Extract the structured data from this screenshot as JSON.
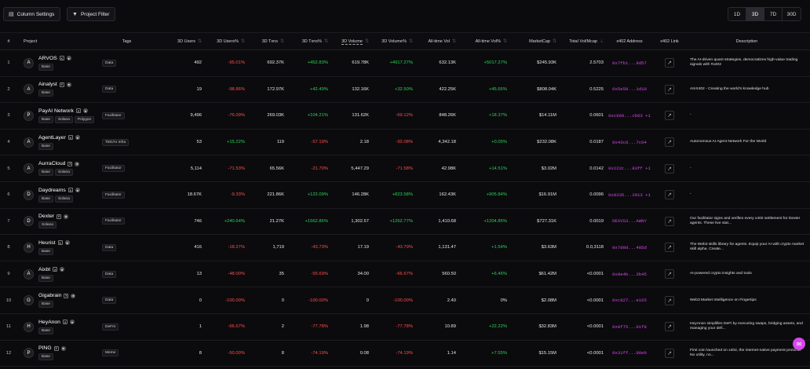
{
  "toolbar": {
    "column_settings_label": "Column Settings",
    "project_filter_label": "Project Filter",
    "timeframes": [
      "1D",
      "3D",
      "7D",
      "30D"
    ],
    "active_timeframe": "3D"
  },
  "table": {
    "headers": {
      "index": "#",
      "project": "Project",
      "tags": "Tags",
      "users": "3D Users",
      "users_pct": "3D Users%",
      "txns": "3D Txns",
      "txns_pct": "3D Txns%",
      "volume": "3D Volume",
      "volume_pct": "3D Volume%",
      "alltime_vol": "All-time Vol",
      "alltime_vol_pct": "All-time Vol%",
      "marketcap": "MarketCap",
      "vol_mcap": "Total Vol/Mcap",
      "x402_address": "x402 Address",
      "x402_link": "x402 Link",
      "description": "Description"
    },
    "rows": [
      {
        "index": "1",
        "name": "ARVOS",
        "logo": "A",
        "chips": [
          "Base"
        ],
        "tag": "Data",
        "users": "492",
        "users_pct": "-95.01%",
        "txns": "692.37K",
        "txns_pct": "+452.83%",
        "volume": "619.78K",
        "volume_pct": "+4917.27%",
        "alltime": "632.13K",
        "alltime_pct": "+5017.27%",
        "mcap": "$245.93K",
        "vmcap": "2.5703",
        "address": "0x7fb1...9d57",
        "desc": "The AI-driven quant strategies, democratizes high-value trading signals with #x402"
      },
      {
        "index": "2",
        "name": "Ainalyst",
        "logo": "A",
        "chips": [
          "Base"
        ],
        "tag": "Data",
        "users": "19",
        "users_pct": "-98.86%",
        "txns": "172.97K",
        "txns_pct": "+42.49%",
        "volume": "132.16K",
        "volume_pct": "+32.50%",
        "alltime": "422.25K",
        "alltime_pct": "+45.66%",
        "mcap": "$808.04K",
        "vmcap": "0.5225",
        "address": "0x5e50...1d10",
        "desc": "AInX402 - Creating the world's knowledge hub"
      },
      {
        "index": "3",
        "name": "PayAI Network",
        "logo": "P",
        "chips": [
          "Base",
          "Solana",
          "Polygon"
        ],
        "tag": "Facilitator",
        "users": "9,496",
        "users_pct": "-76.09%",
        "txns": "269.03K",
        "txns_pct": "+104.21%",
        "volume": "131.62K",
        "volume_pct": "-69.12%",
        "alltime": "848.26K",
        "alltime_pct": "+18.37%",
        "mcap": "$14.11M",
        "vmcap": "0.0601",
        "address": "0xc669...cb63 +1",
        "desc": "-"
      },
      {
        "index": "4",
        "name": "AgentLayer",
        "logo": "A",
        "chips": [
          "Base"
        ],
        "tag": "TEE/AI Infra",
        "users": "53",
        "users_pct": "+15.22%",
        "txns": "119",
        "txns_pct": "-57.19%",
        "volume": "2.18",
        "volume_pct": "-92.08%",
        "alltime": "4,342.18",
        "alltime_pct": "+0.05%",
        "mcap": "$232.08K",
        "vmcap": "0.0187",
        "address": "0x43c8...7c04",
        "desc": "Autonomous AI Agent Network For the World"
      },
      {
        "index": "5",
        "name": "AurraCloud",
        "logo": "A",
        "chips": [
          "Base",
          "Solana"
        ],
        "tag": "Facilitator",
        "users": "5,114",
        "users_pct": "-71.53%",
        "txns": "65.56K",
        "txns_pct": "-21.70%",
        "volume": "5,447.29",
        "volume_pct": "-71.58%",
        "alltime": "42.98K",
        "alltime_pct": "+14.51%",
        "mcap": "$3.02M",
        "vmcap": "0.0142",
        "address": "0x222c...83ff +1",
        "desc": "-"
      },
      {
        "index": "6",
        "name": "Daydreams",
        "logo": "D",
        "chips": [
          "Base",
          "Solana"
        ],
        "tag": "Facilitator",
        "users": "18.67K",
        "users_pct": "-9.33%",
        "txns": "221.86K",
        "txns_pct": "+122.09%",
        "volume": "146.28K",
        "volume_pct": "+823.58%",
        "alltime": "162.43K",
        "alltime_pct": "+905.84%",
        "mcap": "$16.91M",
        "vmcap": "0.0096",
        "address": "0x8335...2913 +1",
        "desc": "-"
      },
      {
        "index": "7",
        "name": "Dexter",
        "logo": "D",
        "chips": [
          "Solana"
        ],
        "tag": "Facilitator",
        "users": "746",
        "users_pct": "+240.64%",
        "txns": "21.27K",
        "txns_pct": "+1562.86%",
        "volume": "1,302.57",
        "volume_pct": "+1262.77%",
        "alltime": "1,410.68",
        "alltime_pct": "+1204.85%",
        "mcap": "$727.31K",
        "vmcap": "0.0019",
        "address": "DEXVS3...AWNY",
        "desc": "Our facilitator signs and verifies every x402 settlement for Dexter agents. These live stat..."
      },
      {
        "index": "8",
        "name": "Heurist",
        "logo": "H",
        "chips": [
          "Base"
        ],
        "tag": "Data",
        "users": "416",
        "users_pct": "-18.27%",
        "txns": "1,719",
        "txns_pct": "-43.73%",
        "volume": "17.19",
        "volume_pct": "-43.79%",
        "alltime": "1,131.47",
        "alltime_pct": "+1.54%",
        "mcap": "$3.63M",
        "vmcap": "0.0,3118",
        "address": "0x7d9d...405d",
        "desc": "The Web3 skills library for agents. Equip your AI with crypto market skill alpha. Create..."
      },
      {
        "index": "9",
        "name": "Aixbt",
        "logo": "A",
        "chips": [
          "Base"
        ],
        "tag": "Data",
        "users": "13",
        "users_pct": "-48.00%",
        "txns": "35",
        "txns_pct": "-55.69%",
        "volume": "34.00",
        "volume_pct": "-66.67%",
        "alltime": "560.50",
        "alltime_pct": "+6.46%",
        "mcap": "$61.42M",
        "vmcap": "<0.0001",
        "address": "0x9e4b...3b45",
        "desc": "AI-powered crypto insights and tools"
      },
      {
        "index": "10",
        "name": "Gigabrain",
        "logo": "G",
        "chips": [
          "Base"
        ],
        "tag": "Data",
        "users": "0",
        "users_pct": "-100.00%",
        "txns": "0",
        "txns_pct": "-100.00%",
        "volume": "0",
        "volume_pct": "-100.00%",
        "alltime": "2.40",
        "alltime_pct": "0%",
        "mcap": "$2.08M",
        "vmcap": "<0.0001",
        "address": "0xc827...e165",
        "desc": "Web3 Market Intelligence on Fingertips"
      },
      {
        "index": "11",
        "name": "HeyAnon",
        "logo": "H",
        "chips": [
          "Base"
        ],
        "tag": "DeFAI",
        "users": "1",
        "users_pct": "-66.67%",
        "txns": "2",
        "txns_pct": "-77.78%",
        "volume": "1.98",
        "volume_pct": "-77.78%",
        "alltime": "10.89",
        "alltime_pct": "+22.22%",
        "mcap": "$32.83M",
        "vmcap": "<0.0001",
        "address": "0x0f75...01f8",
        "desc": "HeyAnon simplifies DeFi by executing swaps, bridging assets, and managing your defi..."
      },
      {
        "index": "12",
        "name": "PING",
        "logo": "P",
        "chips": [
          "Base"
        ],
        "tag": "Meme",
        "users": "8",
        "users_pct": "-50.00%",
        "txns": "8",
        "txns_pct": "-74.19%",
        "volume": "0.08",
        "volume_pct": "-74.19%",
        "alltime": "1.14",
        "alltime_pct": "+7.55%",
        "mcap": "$15.15M",
        "vmcap": "<0.0001",
        "address": "0x31ff...08eb",
        "desc": "First coin launched on x402, the internet-native payment protocol. No utility, no..."
      }
    ]
  },
  "colors": {
    "positive": "#2bd35a",
    "negative": "#ff4f4f",
    "address": "#d946ef",
    "background": "#0b0b0d"
  }
}
